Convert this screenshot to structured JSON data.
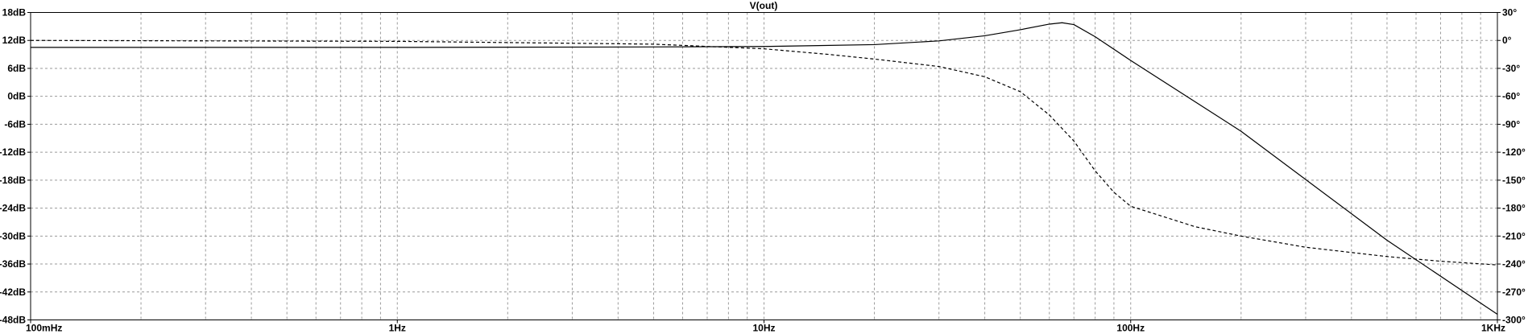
{
  "chart_data": {
    "type": "line",
    "title": "V(out)",
    "xscale": "log",
    "xlim": [
      0.1,
      1000
    ],
    "ylim_left": [
      -48,
      18
    ],
    "ylim_right": [
      -300,
      30
    ],
    "grid": true,
    "x_ticks": [
      {
        "value": 0.1,
        "label": "100mHz"
      },
      {
        "value": 1,
        "label": "1Hz"
      },
      {
        "value": 10,
        "label": "10Hz"
      },
      {
        "value": 100,
        "label": "100Hz"
      },
      {
        "value": 1000,
        "label": "1KHz"
      }
    ],
    "y_ticks_left": [
      {
        "value": 18,
        "label": "18dB"
      },
      {
        "value": 12,
        "label": "12dB"
      },
      {
        "value": 6,
        "label": "6dB"
      },
      {
        "value": 0,
        "label": "0dB"
      },
      {
        "value": -6,
        "label": "-6dB"
      },
      {
        "value": -12,
        "label": "-12dB"
      },
      {
        "value": -18,
        "label": "-18dB"
      },
      {
        "value": -24,
        "label": "-24dB"
      },
      {
        "value": -30,
        "label": "-30dB"
      },
      {
        "value": -36,
        "label": "-36dB"
      },
      {
        "value": -42,
        "label": "-42dB"
      },
      {
        "value": -48,
        "label": "-48dB"
      }
    ],
    "y_ticks_right": [
      {
        "value": 30,
        "label": "30°"
      },
      {
        "value": 0,
        "label": "0°"
      },
      {
        "value": -30,
        "label": "-30°"
      },
      {
        "value": -60,
        "label": "-60°"
      },
      {
        "value": -90,
        "label": "-90°"
      },
      {
        "value": -120,
        "label": "-120°"
      },
      {
        "value": -150,
        "label": "-150°"
      },
      {
        "value": -180,
        "label": "-180°"
      },
      {
        "value": -210,
        "label": "-210°"
      },
      {
        "value": -240,
        "label": "-240°"
      },
      {
        "value": -270,
        "label": "-270°"
      },
      {
        "value": -300,
        "label": "-300°"
      }
    ],
    "series": [
      {
        "axis": "left",
        "style": "solid",
        "color": "#000000",
        "x": [
          0.1,
          1,
          5,
          10,
          20,
          30,
          40,
          50,
          60,
          65,
          70,
          80,
          100,
          200,
          500,
          1000
        ],
        "y": [
          10.5,
          10.5,
          10.6,
          10.7,
          11.1,
          11.9,
          13.0,
          14.3,
          15.5,
          15.8,
          15.4,
          12.8,
          7.7,
          -7.5,
          -30.9,
          -46.8
        ]
      },
      {
        "axis": "right",
        "style": "dashed",
        "color": "#000000",
        "x": [
          0.1,
          1,
          5,
          10,
          15,
          20,
          30,
          40,
          50,
          60,
          70,
          80,
          90,
          100,
          150,
          200,
          300,
          500,
          700,
          1000
        ],
        "y": [
          0,
          -1,
          -4,
          -9,
          -15,
          -20,
          -28,
          -39,
          -55,
          -80,
          -108,
          -140,
          -163,
          -178,
          -200,
          -210,
          -222,
          -232,
          -237,
          -241
        ]
      }
    ]
  }
}
